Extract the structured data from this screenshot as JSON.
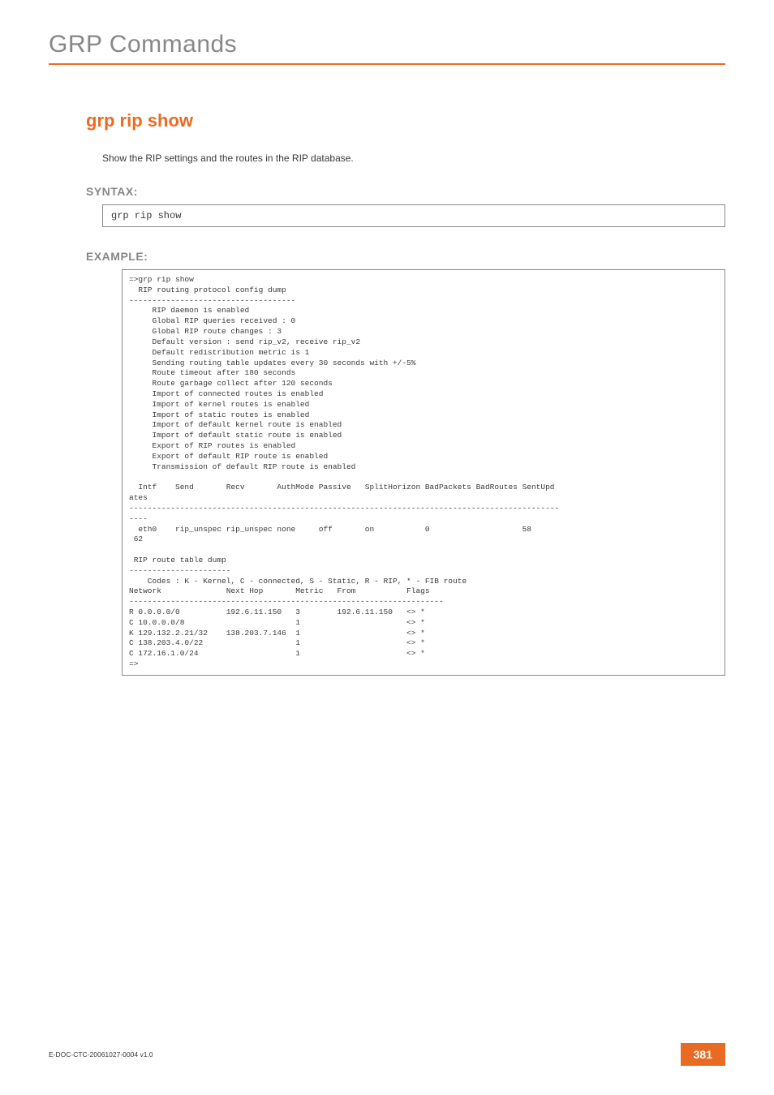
{
  "chapter_title": "GRP Commands",
  "command_title": "grp rip show",
  "description": "Show the RIP settings and the routes in the RIP database.",
  "syntax_label": "SYNTAX:",
  "syntax_text": "grp rip show",
  "example_label": "EXAMPLE:",
  "example_text": "=>grp rip show\n  RIP routing protocol config dump\n------------------------------------\n     RIP daemon is enabled\n     Global RIP queries received : 0\n     Global RIP route changes : 3\n     Default version : send rip_v2, receive rip_v2\n     Default redistribution metric is 1\n     Sending routing table updates every 30 seconds with +/-5%\n     Route timeout after 180 seconds\n     Route garbage collect after 120 seconds\n     Import of connected routes is enabled\n     Import of kernel routes is enabled\n     Import of static routes is enabled\n     Import of default kernel route is enabled\n     Import of default static route is enabled\n     Export of RIP routes is enabled\n     Export of default RIP route is enabled\n     Transmission of default RIP route is enabled\n\n  Intf    Send       Recv       AuthMode Passive   SplitHorizon BadPackets BadRoutes SentUpd\nates\n---------------------------------------------------------------------------------------------\n----\n  eth0    rip_unspec rip_unspec none     off       on           0                    58\n 62\n\n RIP route table dump\n----------------------\n    Codes : K - Kernel, C - connected, S - Static, R - RIP, * - FIB route\nNetwork              Next Hop       Metric   From           Flags\n--------------------------------------------------------------------\nR 0.0.0.0/0          192.6.11.150   3        192.6.11.150   <> *\nC 10.0.0.0/8                        1                       <> *\nK 129.132.2.21/32    138.203.7.146  1                       <> *\nC 138.203.4.0/22                    1                       <> *\nC 172.16.1.0/24                     1                       <> *\n=>",
  "footer_doc_id": "E-DOC-CTC-20061027-0004 v1.0",
  "footer_page": "381",
  "colors": {
    "accent": "#e96b23",
    "grey_text": "#878787",
    "body_text": "#3a3a3a",
    "border": "#8a8a8a"
  }
}
